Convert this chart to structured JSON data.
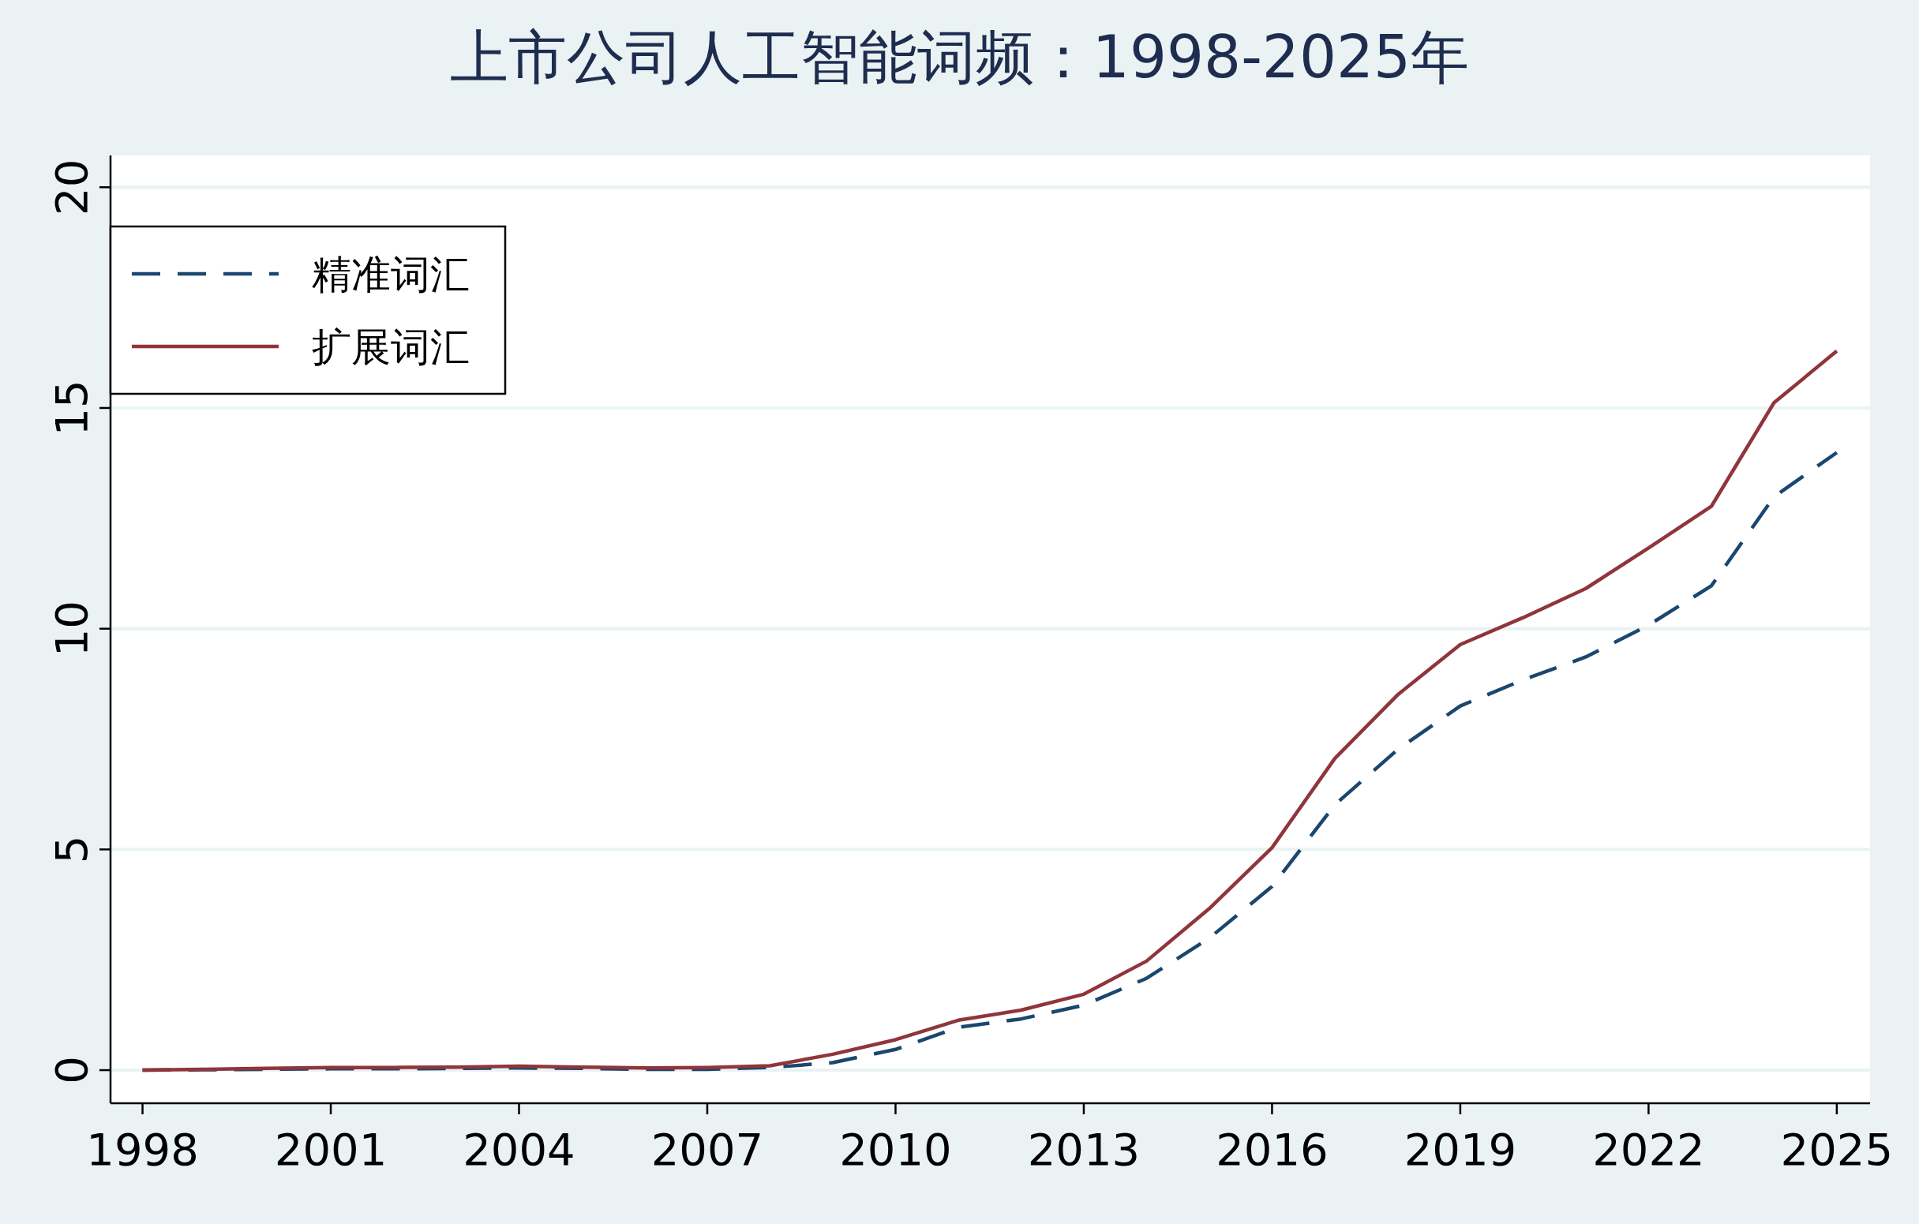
{
  "chart_data": {
    "type": "line",
    "title": "上市公司人工智能词频：1998-2025年",
    "x": [
      1998,
      1999,
      2000,
      2001,
      2002,
      2003,
      2004,
      2005,
      2006,
      2007,
      2008,
      2009,
      2010,
      2011,
      2012,
      2013,
      2014,
      2015,
      2016,
      2017,
      2018,
      2019,
      2020,
      2021,
      2022,
      2023,
      2024,
      2025
    ],
    "series": [
      {
        "name": "精准词汇",
        "color": "#1a476f",
        "line_style": "dashed",
        "values": [
          0,
          0.01,
          0.02,
          0.03,
          0.03,
          0.04,
          0.05,
          0.04,
          0.02,
          0.02,
          0.06,
          0.17,
          0.47,
          0.97,
          1.16,
          1.47,
          2.08,
          2.99,
          4.16,
          6.01,
          7.26,
          8.25,
          8.84,
          9.36,
          10.08,
          10.97,
          12.99,
          13.99
        ]
      },
      {
        "name": "扩展词汇",
        "color": "#90353b",
        "line_style": "solid",
        "values": [
          0,
          0.02,
          0.04,
          0.06,
          0.06,
          0.07,
          0.09,
          0.07,
          0.05,
          0.06,
          0.1,
          0.36,
          0.69,
          1.13,
          1.36,
          1.72,
          2.47,
          3.66,
          5.04,
          7.06,
          8.5,
          9.64,
          10.25,
          10.91,
          11.83,
          12.77,
          15.12,
          16.29
        ]
      }
    ],
    "xlim": [
      1997.49,
      2025.53
    ],
    "xticks": [
      1998,
      2001,
      2004,
      2007,
      2010,
      2013,
      2016,
      2019,
      2022,
      2025
    ],
    "ylim": [
      -0.75,
      20.72
    ],
    "yticks": [
      0,
      5,
      10,
      15,
      20
    ],
    "grid": "y",
    "legend": "top left",
    "marker": "none"
  }
}
